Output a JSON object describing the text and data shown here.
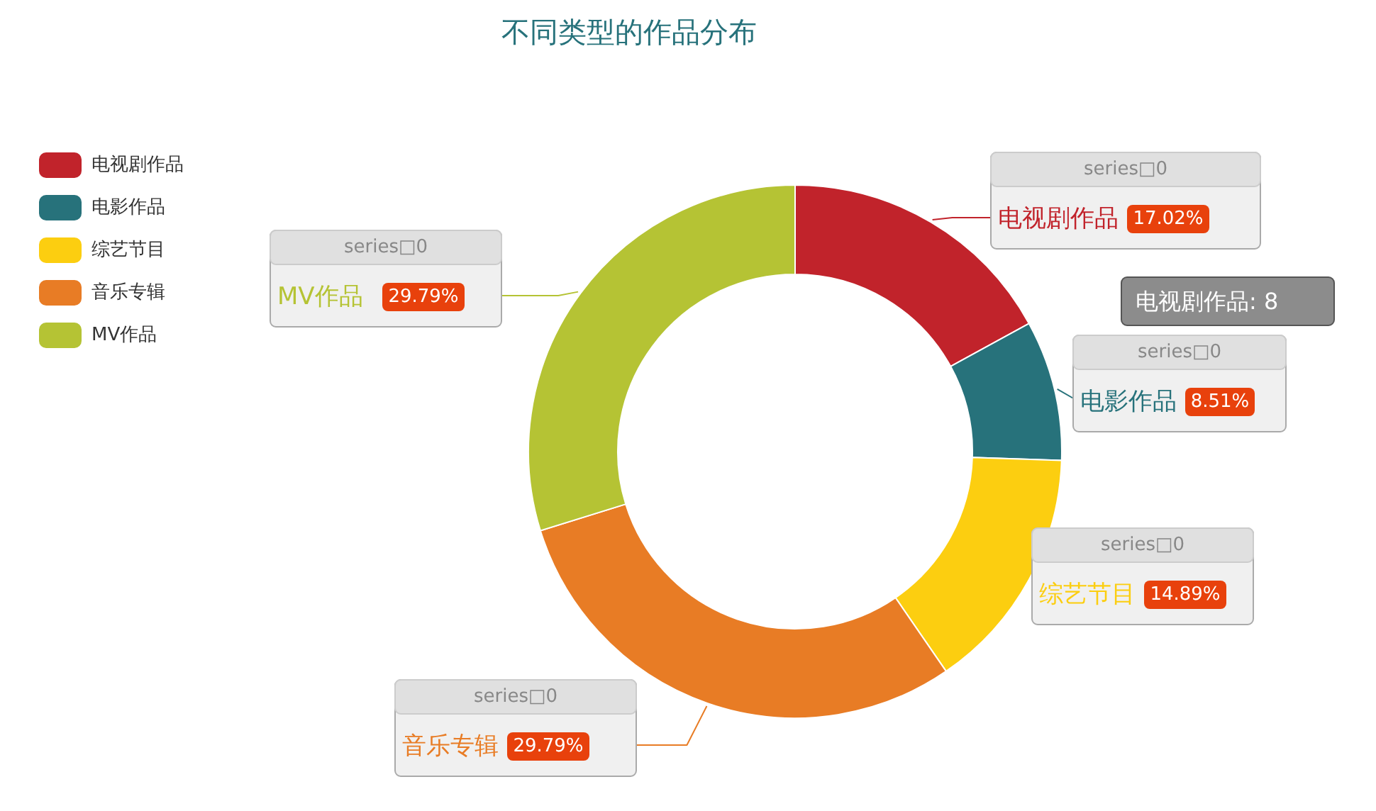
{
  "chart_data": {
    "type": "donut",
    "title": "不同类型的作品分布",
    "categories": [
      "电视剧作品",
      "电影作品",
      "综艺节目",
      "音乐专辑",
      "MV作品"
    ],
    "values": [
      17.02,
      8.51,
      14.89,
      29.79,
      29.79
    ],
    "colors": [
      "#c1232b",
      "#27727b",
      "#fcce10",
      "#e87c25",
      "#b5c334"
    ],
    "value_labels": [
      "17.02%",
      "8.51%",
      "14.89%",
      "29.79%",
      "29.79%"
    ],
    "legend": "top left",
    "annotations": [
      {
        "text": "series□0",
        "x": "电视剧作品"
      },
      {
        "text": "series□0",
        "x": "电影作品"
      },
      {
        "text": "series□0",
        "x": "综艺节目"
      },
      {
        "text": "series□0",
        "x": "音乐专辑"
      },
      {
        "text": "series□0",
        "x": "MV作品"
      },
      "电视剧作品: 8"
    ]
  }
}
